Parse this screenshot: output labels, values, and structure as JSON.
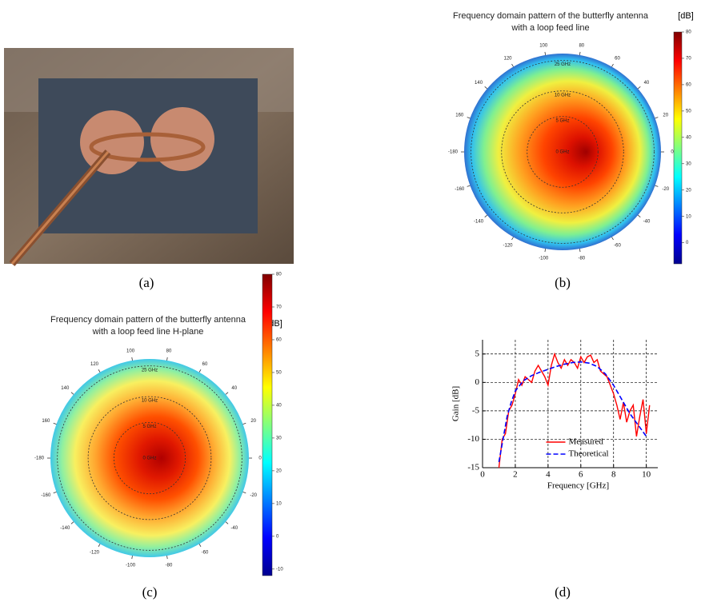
{
  "chart_data": [
    {
      "type": "image",
      "caption": "(a)"
    },
    {
      "type": "polar-heatmap",
      "title": [
        "Frequency domain pattern of the butterfly antenna",
        "with a loop feed line"
      ],
      "colorbar_label": "[dB]",
      "angle_ticks": [
        100,
        80,
        60,
        40,
        20,
        0,
        -20,
        -40,
        -60,
        -80,
        -100,
        -120,
        -140,
        -160,
        -180,
        160,
        140,
        120
      ],
      "ring_labels": [
        "25 GHz",
        "10 GHz",
        "5 GHz",
        "0 GHz"
      ],
      "clim": [
        -8,
        80
      ],
      "cticks": [
        80,
        70,
        60,
        50,
        40,
        30,
        20,
        10,
        0
      ],
      "caption": "(b)"
    },
    {
      "type": "polar-heatmap",
      "title": [
        "Frequency domain pattern of the butterfly antenna",
        "with a loop feed line H-plane"
      ],
      "colorbar_label": "[dB]",
      "angle_ticks": [
        100,
        80,
        60,
        40,
        20,
        0,
        -20,
        -40,
        -60,
        -80,
        -100,
        -120,
        -140,
        -160,
        -180,
        160,
        140,
        120
      ],
      "ring_labels": [
        "25 GHz",
        "10 GHz",
        "5 GHz",
        "0 GHz"
      ],
      "clim": [
        -12,
        80
      ],
      "cticks": [
        80,
        70,
        60,
        50,
        40,
        30,
        20,
        10,
        0,
        -10
      ],
      "caption": "(c)"
    },
    {
      "type": "line",
      "xlabel": "Frequency [GHz]",
      "ylabel": "Gain [dB]",
      "xlim": [
        0,
        10.7
      ],
      "ylim": [
        -15,
        7.5
      ],
      "xticks": [
        0,
        2,
        4,
        6,
        8,
        10
      ],
      "yticks": [
        5,
        0,
        -5,
        -10,
        -15
      ],
      "grid": true,
      "legend": "lower center",
      "series": [
        {
          "name": "Measured",
          "color": "#ff0000",
          "linestyle": "solid",
          "x": [
            1,
            1.2,
            1.4,
            1.6,
            1.8,
            2,
            2.2,
            2.4,
            2.6,
            2.8,
            3,
            3.2,
            3.4,
            3.6,
            3.8,
            4,
            4.2,
            4.4,
            4.6,
            4.8,
            5,
            5.2,
            5.4,
            5.6,
            5.8,
            6,
            6.2,
            6.4,
            6.6,
            6.8,
            7,
            7.2,
            7.4,
            7.6,
            7.8,
            8,
            8.2,
            8.4,
            8.6,
            8.8,
            9,
            9.2,
            9.4,
            9.6,
            9.8,
            10,
            10.2
          ],
          "values": [
            -15,
            -10,
            -9,
            -5,
            -4,
            -2,
            0.5,
            -0.5,
            1,
            0.5,
            0,
            2,
            3,
            2,
            1,
            -0.5,
            3,
            5,
            3.5,
            2.5,
            4,
            3,
            4,
            3.5,
            2.5,
            4.5,
            3.5,
            4.5,
            4.8,
            3.5,
            4,
            2,
            1.5,
            1,
            -0.5,
            -2,
            -4,
            -6.5,
            -3.5,
            -7,
            -5,
            -4,
            -9.5,
            -6,
            -3,
            -9,
            -4
          ]
        },
        {
          "name": "Theoretical",
          "color": "#0000ff",
          "linestyle": "dashed",
          "x": [
            1,
            1.25,
            1.5,
            1.75,
            2,
            2.5,
            3,
            3.5,
            4,
            4.5,
            5,
            5.5,
            6,
            6.5,
            7,
            7.5,
            8,
            8.5,
            9,
            9.5,
            10
          ],
          "values": [
            -14,
            -10,
            -6,
            -3.5,
            -1.5,
            0.3,
            1.2,
            1.8,
            2.3,
            2.8,
            3.2,
            3.5,
            3.6,
            3.4,
            2.8,
            1.5,
            -0.5,
            -3,
            -5.5,
            -7.5,
            -9.5
          ]
        }
      ],
      "caption": "(d)"
    }
  ]
}
